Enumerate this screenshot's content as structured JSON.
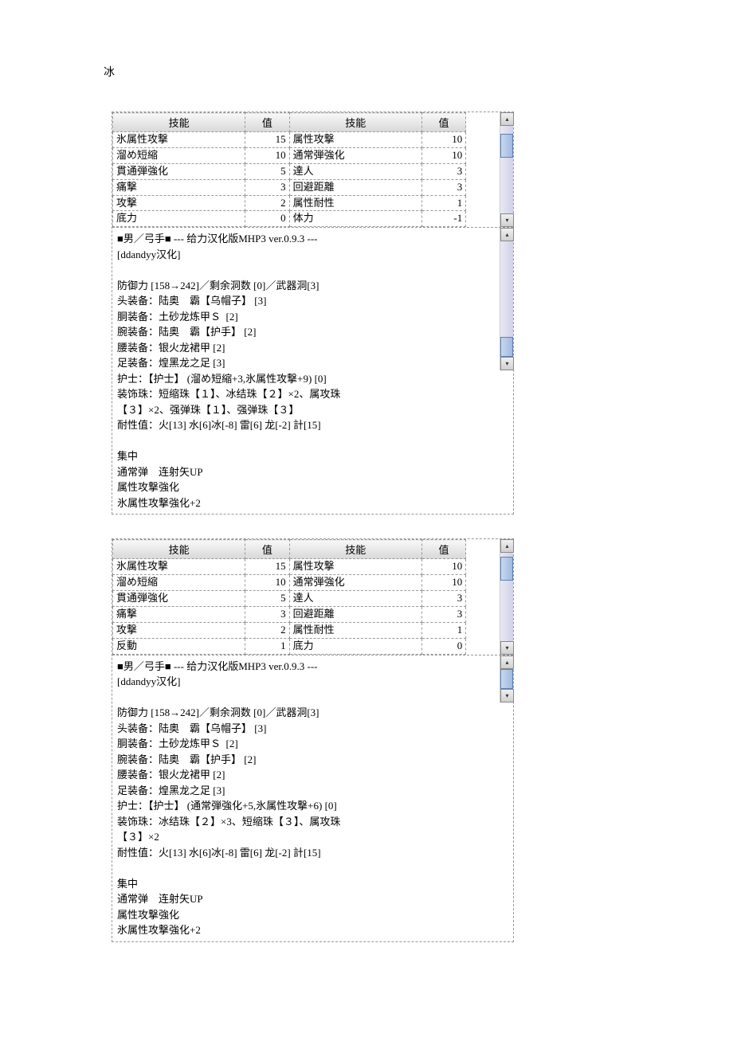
{
  "page_title": "冰",
  "col_headers": [
    "技能",
    "值",
    "技能",
    "值"
  ],
  "block1": {
    "rows": [
      [
        "氷属性攻撃",
        "15",
        "属性攻撃",
        "10"
      ],
      [
        "溜め短縮",
        "10",
        "通常弾強化",
        "10"
      ],
      [
        "貫通弾強化",
        "5",
        "達人",
        "3"
      ],
      [
        "痛撃",
        "3",
        "回避距離",
        "3"
      ],
      [
        "攻撃",
        "2",
        "属性耐性",
        "1"
      ],
      [
        "底力",
        "0",
        "体力",
        "-1"
      ]
    ],
    "detail": [
      "■男／弓手■ --- 给力汉化版MHP3 ver.0.9.3 ---",
      "[ddandyy汉化]",
      "",
      "防御力 [158→242]／剩余洞数 [0]／武器洞[3]",
      "头装备：陆奥　霸【乌帽子】 [3]",
      "胴装备：土砂龙炼甲Ｓ  [2]",
      "腕装备：陆奥　霸【护手】 [2]",
      "腰装备：银火龙裙甲 [2]",
      "足装备：煌黑龙之足 [3]",
      "护士：【护士】 (溜め短縮+3,氷属性攻撃+9) [0]",
      "装饰珠：短缩珠【１】、冰结珠【２】×2、属攻珠",
      "【３】×2、强弹珠【１】、强弹珠【３】",
      "耐性值：火[13] 水[6]冰[-8] 雷[6] 龙[-2] 計[15]",
      "",
      "集中",
      "通常弹　连射矢UP",
      "属性攻撃強化",
      "氷属性攻撃強化+2"
    ]
  },
  "block2": {
    "rows": [
      [
        "氷属性攻撃",
        "15",
        "属性攻撃",
        "10"
      ],
      [
        "溜め短縮",
        "10",
        "通常弾強化",
        "10"
      ],
      [
        "貫通弾強化",
        "5",
        "達人",
        "3"
      ],
      [
        "痛撃",
        "3",
        "回避距離",
        "3"
      ],
      [
        "攻撃",
        "2",
        "属性耐性",
        "1"
      ],
      [
        "反動",
        "1",
        "底力",
        "0"
      ]
    ],
    "detail": [
      "■男／弓手■ --- 给力汉化版MHP3 ver.0.9.3 ---",
      "[ddandyy汉化]",
      "",
      "防御力 [158→242]／剩余洞数 [0]／武器洞[3]",
      "头装备：陆奥　霸【乌帽子】 [3]",
      "胴装备：土砂龙炼甲Ｓ  [2]",
      "腕装备：陆奥　霸【护手】 [2]",
      "腰装备：银火龙裙甲 [2]",
      "足装备：煌黑龙之足 [3]",
      "护士：【护士】 (通常弾強化+5,氷属性攻撃+6) [0]",
      "装饰珠：冰结珠【２】×3、短缩珠【３】、属攻珠",
      "【３】×2",
      "耐性值：火[13] 水[6]冰[-8] 雷[6] 龙[-2] 計[15]",
      "",
      "集中",
      "通常弹　连射矢UP",
      "属性攻撃強化",
      "氷属性攻撃強化+2"
    ]
  }
}
